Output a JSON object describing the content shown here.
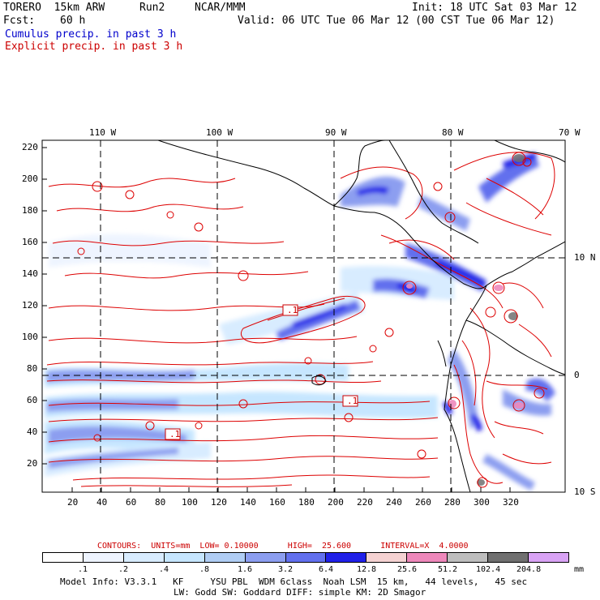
{
  "header": {
    "model": "TORERO  15km ARW",
    "run": "Run2",
    "org": "NCAR/MMM",
    "init": "Init: 18 UTC Sat 03 Mar 12",
    "fcst_label": "Fcst:",
    "fcst_value": "60 h",
    "valid": "Valid: 06 UTC Tue 06 Mar 12 (00 CST Tue 06 Mar 12)",
    "line1": "Cumulus precip. in past 3 h",
    "line1_color": "#0000cc",
    "line2": "Explicit precip. in past 3 h",
    "line2_color": "#cc0000"
  },
  "map": {
    "lon_labels": [
      "110 W",
      "100 W",
      "90 W",
      "80 W",
      "70 W"
    ],
    "lat_labels": [
      "10 N",
      "0",
      "10 S"
    ],
    "y_ticks": [
      "220",
      "200",
      "180",
      "160",
      "140",
      "120",
      "100",
      "80",
      "60",
      "40",
      "20"
    ],
    "x_ticks": [
      "20",
      "40",
      "60",
      "80",
      "100",
      "120",
      "140",
      "160",
      "180",
      "200",
      "220",
      "240",
      "260",
      "280",
      "300",
      "320"
    ],
    "contour_labels": [
      ".1",
      ".1",
      ".1"
    ]
  },
  "contours_info": {
    "text": "CONTOURS:  UNITS=mm  LOW= 0.10000      HIGH=  25.600      INTERVAL=X  4.0000",
    "color": "#cc0000"
  },
  "colorbar": {
    "colors": [
      "#ffffff",
      "#eef4ff",
      "#d8ecff",
      "#c6e6ff",
      "#b0cdf4",
      "#8c9ef0",
      "#6270ee",
      "#2020e8",
      "#f5d2d2",
      "#ee88bb",
      "#bdbdbd",
      "#707070",
      "#d9a3f5"
    ],
    "labels": [
      ".1",
      ".2",
      ".4",
      ".8",
      "1.6",
      "3.2",
      "6.4",
      "12.8",
      "25.6",
      "51.2",
      "102.4",
      "204.8"
    ],
    "units": "mm"
  },
  "footer": {
    "line1": "Model Info: V3.3.1   KF     YSU PBL  WDM 6class  Noah LSM  15 km,   44 levels,   45 sec",
    "line2": "LW: Godd SW: Goddard DIFF: simple KM: 2D Smagor"
  }
}
